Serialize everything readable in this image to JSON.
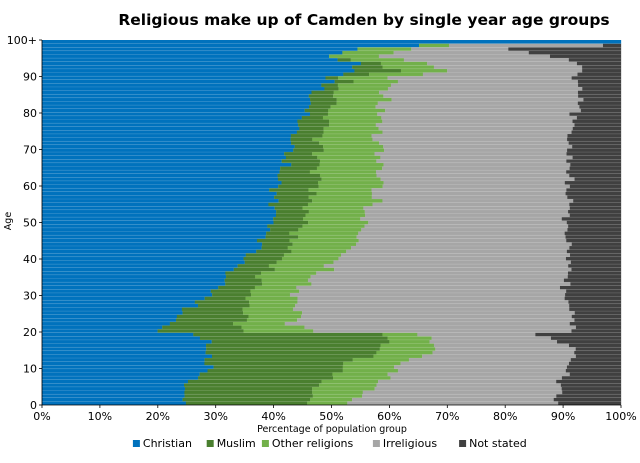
{
  "chart_data": {
    "type": "bar",
    "orientation": "horizontal",
    "stacked": true,
    "percent_stacked": true,
    "title": "Religious make up of Camden by single year age groups",
    "xlabel": "Percentage of population group",
    "ylabel": "Age",
    "xlim": [
      0,
      100
    ],
    "ylim": [
      0,
      100
    ],
    "x_ticks": [
      "0%",
      "10%",
      "20%",
      "30%",
      "40%",
      "50%",
      "60%",
      "70%",
      "80%",
      "90%",
      "100%"
    ],
    "y_ticks": [
      "0",
      "10",
      "20",
      "30",
      "40",
      "50",
      "60",
      "70",
      "80",
      "90",
      "100+"
    ],
    "grid": false,
    "legend_position": "bottom",
    "categories": [
      "0",
      "1",
      "2",
      "3",
      "4",
      "5",
      "6",
      "7",
      "8",
      "9",
      "10",
      "11",
      "12",
      "13",
      "14",
      "15",
      "16",
      "17",
      "18",
      "19",
      "20",
      "21",
      "22",
      "23",
      "24",
      "25",
      "26",
      "27",
      "28",
      "29",
      "30",
      "31",
      "32",
      "33",
      "34",
      "35",
      "36",
      "37",
      "38",
      "39",
      "40",
      "41",
      "42",
      "43",
      "44",
      "45",
      "46",
      "47",
      "48",
      "49",
      "50",
      "51",
      "52",
      "53",
      "54",
      "55",
      "56",
      "57",
      "58",
      "59",
      "60",
      "61",
      "62",
      "63",
      "64",
      "65",
      "66",
      "67",
      "68",
      "69",
      "70",
      "71",
      "72",
      "73",
      "74",
      "75",
      "76",
      "77",
      "78",
      "79",
      "80",
      "81",
      "82",
      "83",
      "84",
      "85",
      "86",
      "87",
      "88",
      "89",
      "90",
      "91",
      "92",
      "93",
      "94",
      "95",
      "96",
      "97",
      "98",
      "99",
      "100+"
    ],
    "anchor_ages": [
      0,
      5,
      10,
      15,
      17,
      19,
      20,
      22,
      25,
      30,
      35,
      40,
      45,
      50,
      55,
      60,
      65,
      70,
      75,
      80,
      85,
      88,
      90,
      92,
      94,
      96,
      98,
      99,
      100
    ],
    "series": [
      {
        "name": "Christian",
        "color": "#0072bd",
        "anchor_values": [
          24,
          25,
          29,
          28,
          29,
          26,
          20,
          22,
          24,
          29,
          32,
          35,
          38,
          40,
          40,
          41,
          42,
          43,
          44,
          45,
          47,
          49,
          50,
          54,
          54,
          50,
          54,
          66,
          100
        ]
      },
      {
        "name": "Muslim",
        "color": "#4a7f2f",
        "anchor_values": [
          21,
          23,
          23,
          30,
          31,
          32,
          14,
          12,
          11,
          7,
          6,
          6,
          5,
          5,
          6,
          7,
          6,
          5,
          5,
          4,
          4,
          3,
          3,
          7,
          3,
          0,
          0,
          0,
          0
        ]
      },
      {
        "name": "Other religions",
        "color": "#72b04a",
        "anchor_values": [
          8,
          10,
          9,
          9,
          7,
          6,
          12,
          10,
          9,
          8,
          9,
          10,
          11,
          10,
          11,
          10,
          11,
          10,
          9,
          9,
          8,
          8,
          8,
          9,
          8,
          10,
          8,
          4,
          0
        ]
      },
      {
        "name": "Irreligious",
        "color": "#a6a6a6",
        "anchor_values": [
          36,
          31,
          30,
          25,
          22,
          22,
          46,
          48,
          48,
          46,
          44,
          40,
          37,
          35,
          34,
          33,
          32,
          33,
          33,
          34,
          34,
          33,
          31,
          23,
          27,
          28,
          18,
          27,
          0
        ]
      },
      {
        "name": "Not stated",
        "color": "#404040",
        "anchor_values": [
          11,
          11,
          9,
          8,
          11,
          14,
          8,
          8,
          8,
          10,
          9,
          9,
          9,
          10,
          9,
          9,
          9,
          9,
          9,
          8,
          7,
          7,
          8,
          7,
          8,
          12,
          20,
          3,
          0
        ]
      }
    ]
  }
}
